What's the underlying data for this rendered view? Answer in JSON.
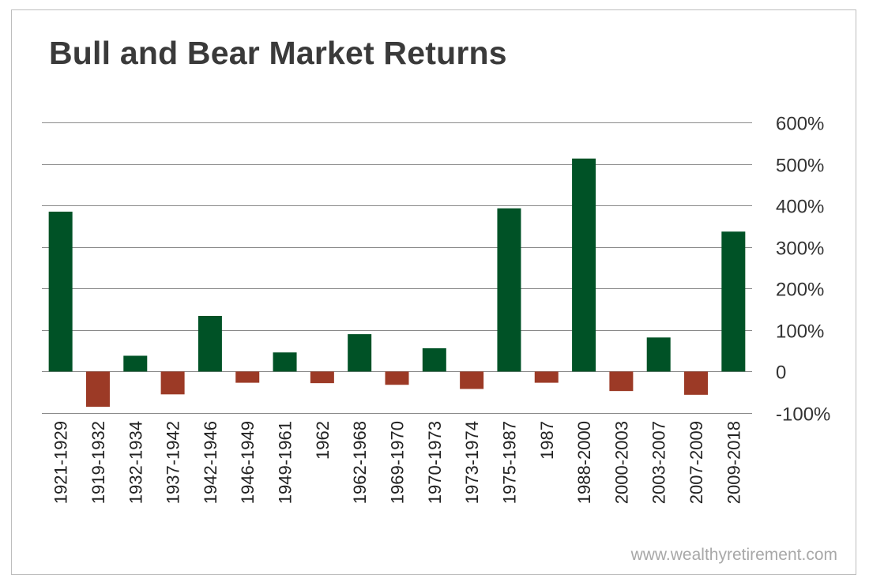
{
  "watermark": "www.wealthyretirement.com",
  "colors": {
    "positive": "#005226",
    "negative": "#9c3a26",
    "gridline": "#8a8a8a",
    "title": "#3a3a3a"
  },
  "chart_data": {
    "type": "bar",
    "title": "Bull and Bear Market Returns",
    "xlabel": "",
    "ylabel": "",
    "ylim": [
      -100,
      600
    ],
    "yticks": [
      600,
      500,
      400,
      300,
      200,
      100,
      0,
      -100
    ],
    "ytick_labels": [
      "600%",
      "500%",
      "400%",
      "300%",
      "200%",
      "100%",
      "0",
      "-100%"
    ],
    "y_axis_position": "right",
    "grid": true,
    "categories": [
      "1921-1929",
      "1919-1932",
      "1932-1934",
      "1937-1942",
      "1942-1946",
      "1946-1949",
      "1949-1961",
      "1962",
      "1962-1968",
      "1969-1970",
      "1970-1973",
      "1973-1974",
      "1975-1987",
      "1987",
      "1988-2000",
      "2000-2003",
      "2003-2007",
      "2007-2009",
      "2009-2018"
    ],
    "values": [
      385,
      -85,
      38,
      -55,
      134,
      -27,
      46,
      -28,
      90,
      -32,
      56,
      -42,
      393,
      -27,
      513,
      -47,
      82,
      -56,
      337
    ]
  }
}
